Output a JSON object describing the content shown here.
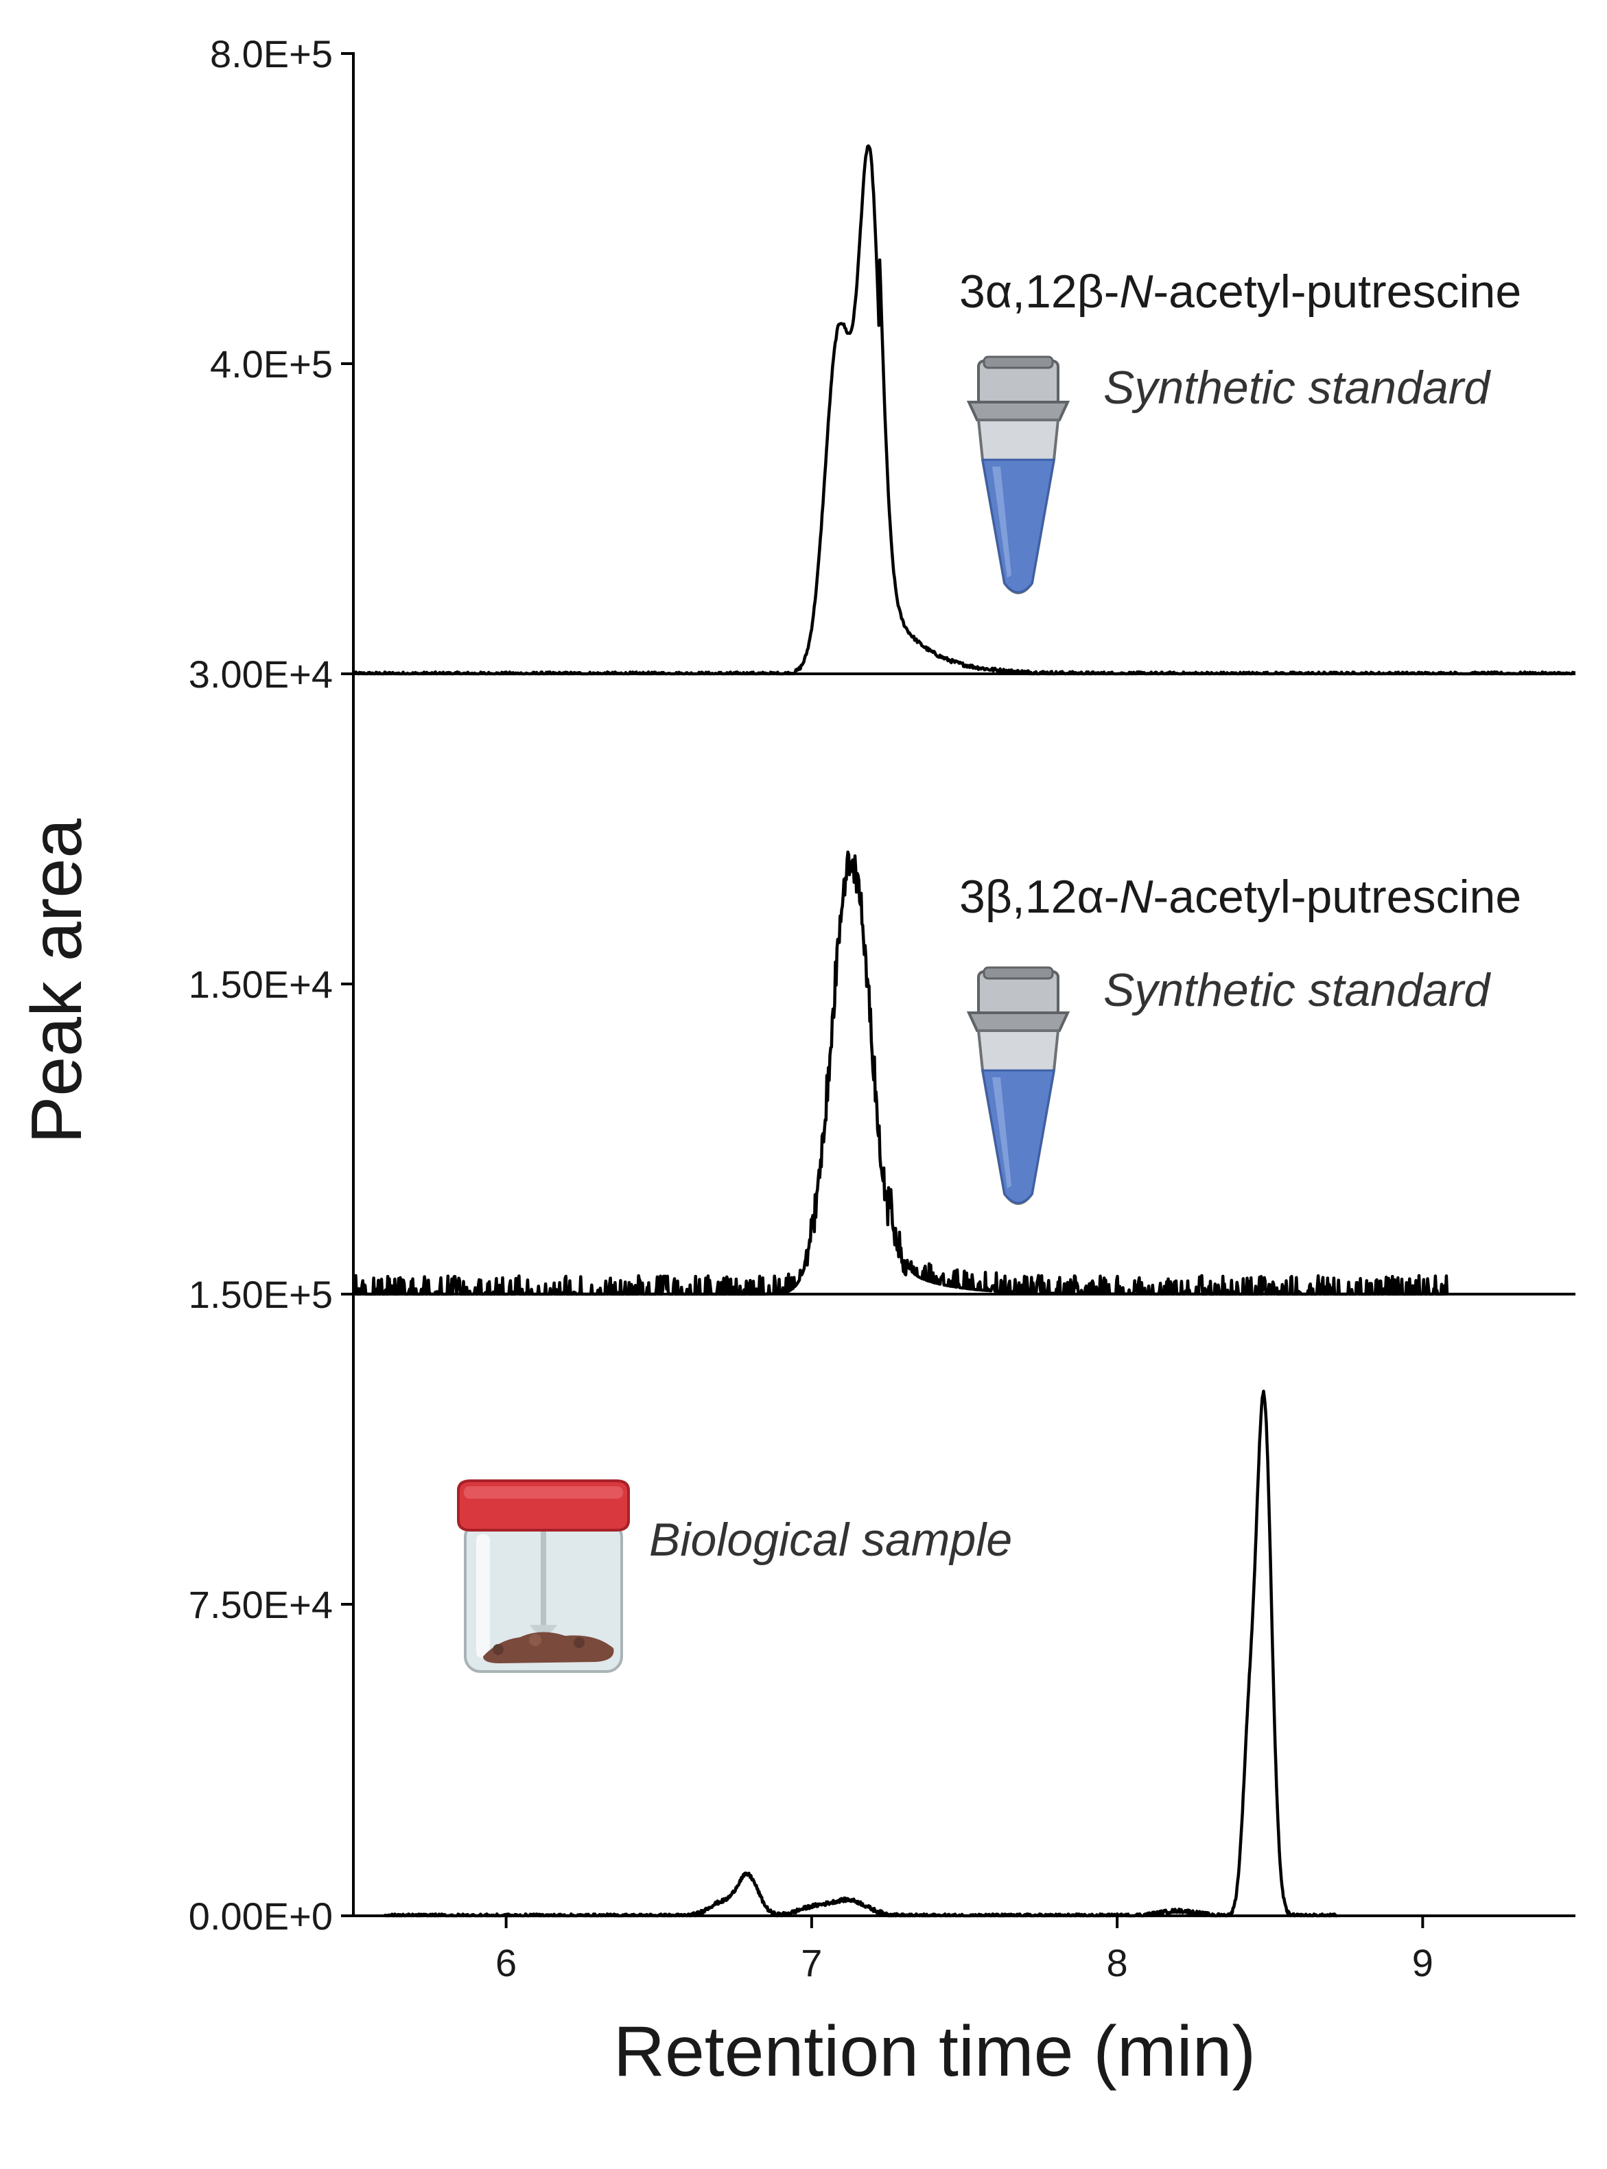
{
  "chart_data": {
    "type": "line",
    "xlabel": "Retention time (min)",
    "ylabel": "Peak area",
    "xlim": [
      5.5,
      9.5
    ],
    "x_ticks": [
      "6",
      "7",
      "8",
      "9"
    ],
    "grid": false,
    "panels": [
      {
        "y_tick_top": "8.0E+5",
        "y_tick_mid": "4.0E+5",
        "y_tick_bottom": "3.00E+4",
        "compound": "3α,12β-N-acetyl-putrescine",
        "compound_prefix": "3α,12β-",
        "compound_N": "N",
        "compound_suffix": "-acetyl-putrescine",
        "sample": "Synthetic standard",
        "icon": "tube-icon",
        "series": {
          "peaks": [
            {
              "center": 7.19,
              "height": 0.8,
              "width": 0.035
            },
            {
              "center": 7.09,
              "height": 0.55,
              "width": 0.045
            }
          ],
          "tail": {
            "start": 7.22,
            "height": 0.15,
            "decay": 0.12
          },
          "noise": 0.003,
          "x_range": [
            5.5,
            9.5
          ]
        }
      },
      {
        "y_tick_mid": "1.50E+4",
        "y_tick_bottom": "1.50E+5",
        "compound": "3β,12α-N-acetyl-putrescine",
        "compound_prefix": "3β,12α-",
        "compound_N": "N",
        "compound_suffix": "-acetyl-putrescine",
        "sample": "Synthetic standard",
        "icon": "tube-icon",
        "series": {
          "peaks": [
            {
              "center": 7.13,
              "height": 0.7,
              "width": 0.065
            }
          ],
          "tail": {
            "start": 7.25,
            "height": 0.05,
            "decay": 0.15
          },
          "noise": 0.03,
          "x_range": [
            5.5,
            9.08
          ]
        }
      },
      {
        "y_tick_mid": "7.50E+4",
        "y_tick_bottom": "0.00E+0",
        "sample": "Biological sample",
        "icon": "sample-jar-icon",
        "series": {
          "peaks": [
            {
              "center": 8.48,
              "height": 0.83,
              "width": 0.025
            },
            {
              "center": 8.43,
              "height": 0.25,
              "width": 0.02
            },
            {
              "center": 6.79,
              "height": 0.065,
              "width": 0.035
            },
            {
              "center": 6.7,
              "height": 0.02,
              "width": 0.04
            },
            {
              "center": 7.12,
              "height": 0.025,
              "width": 0.06
            },
            {
              "center": 7.0,
              "height": 0.012,
              "width": 0.05
            },
            {
              "center": 8.2,
              "height": 0.008,
              "width": 0.06
            }
          ],
          "noise": 0.003,
          "x_range": [
            5.6,
            8.72
          ]
        }
      }
    ]
  },
  "colors": {
    "trace": "#000000",
    "tube_liquid": "#5b7fc9",
    "tube_body": "#c8ccd0",
    "jar_cap": "#d9383f",
    "sample": "#7a4a3c"
  }
}
